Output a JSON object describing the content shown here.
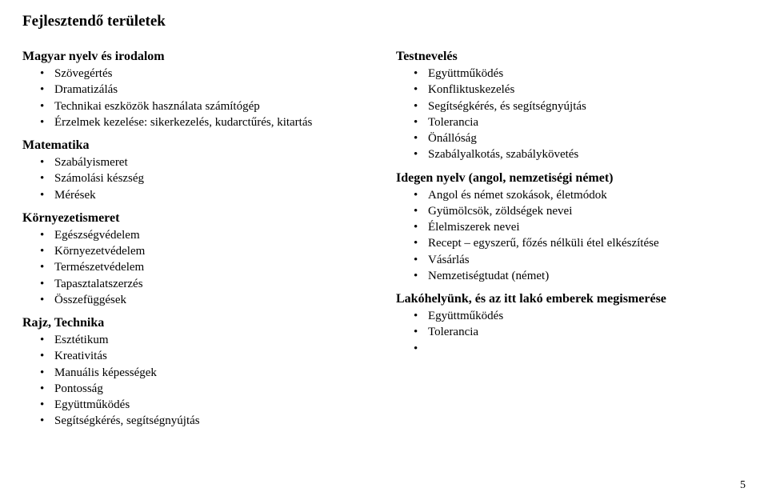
{
  "page_title": "Fejlesztendő területek",
  "page_number": "5",
  "left_sections": [
    {
      "heading": "Magyar nyelv és irodalom",
      "items": [
        "Szövegértés",
        "Dramatizálás",
        "Technikai eszközök használata számítógép",
        "Érzelmek kezelése: sikerkezelés, kudarctűrés, kitartás"
      ]
    },
    {
      "heading": "Matematika",
      "items": [
        "Szabályismeret",
        "Számolási készség",
        "Mérések"
      ]
    },
    {
      "heading": "Környezetismeret",
      "items": [
        "Egészségvédelem",
        "Környezetvédelem",
        "Természetvédelem",
        "Tapasztalatszerzés",
        "Összefüggések"
      ]
    },
    {
      "heading": "Rajz, Technika",
      "items": [
        "Esztétikum",
        "Kreativitás",
        "Manuális képességek",
        "Pontosság",
        "Együttműködés",
        "Segítségkérés, segítségnyújtás"
      ]
    }
  ],
  "right_sections": [
    {
      "heading": "Testnevelés",
      "items": [
        "Együttműködés",
        "Konfliktuskezelés",
        "Segítségkérés, és segítségnyújtás",
        "Tolerancia",
        "Önállóság",
        "Szabályalkotás, szabálykövetés"
      ]
    },
    {
      "heading": "Idegen nyelv (angol, nemzetiségi német)",
      "items": [
        "Angol és német szokások, életmódok",
        "Gyümölcsök, zöldségek nevei",
        "Élelmiszerek nevei",
        "Recept – egyszerű, főzés nélküli étel elkészítése",
        "Vásárlás",
        "Nemzetiségtudat (német)"
      ]
    },
    {
      "heading": "Lakóhelyünk, és az itt lakó emberek megismerése",
      "items": [
        "Együttműködés",
        "Tolerancia",
        ""
      ]
    }
  ]
}
